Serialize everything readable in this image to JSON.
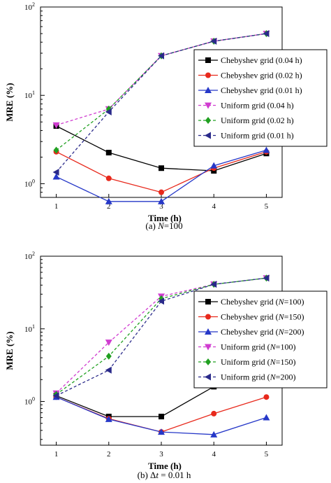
{
  "chart_data": [
    {
      "type": "line",
      "caption": "(a) N=100",
      "xlabel": "Time (h)",
      "ylabel": "MRE (%)",
      "yscale": "log",
      "x": [
        1,
        2,
        3,
        4,
        5
      ],
      "xlim": [
        0.7,
        5.3
      ],
      "ylim": [
        0.7,
        100
      ],
      "x_ticks": [
        "1",
        "2",
        "3",
        "4",
        "5"
      ],
      "y_ticks": [
        {
          "base": "10",
          "exp": "0",
          "value": 1
        },
        {
          "base": "10",
          "exp": "1",
          "value": 10
        },
        {
          "base": "10",
          "exp": "2",
          "value": 100
        }
      ],
      "legend": "right",
      "series": [
        {
          "name": "Chebyshev grid (0.04 h)",
          "values": [
            4.5,
            2.25,
            1.5,
            1.4,
            2.2
          ],
          "color": "#000000",
          "dash": false,
          "marker": "square"
        },
        {
          "name": "Chebyshev grid (0.02 h)",
          "values": [
            2.3,
            1.15,
            0.8,
            1.5,
            2.3
          ],
          "color": "#e8291c",
          "dash": false,
          "marker": "circle"
        },
        {
          "name": "Chebyshev  grid (0.01 h)",
          "values": [
            1.2,
            0.63,
            0.63,
            1.6,
            2.4
          ],
          "color": "#2638c8",
          "dash": false,
          "marker": "triangle-up"
        },
        {
          "name": "Uniform grid (0.04 h)",
          "values": [
            4.6,
            7.0,
            28,
            41,
            50
          ],
          "color": "#d03cd0",
          "dash": true,
          "marker": "triangle-down"
        },
        {
          "name": "Uniform grid (0.02 h)",
          "values": [
            2.4,
            7.0,
            28,
            41,
            50
          ],
          "color": "#20a020",
          "dash": true,
          "marker": "diamond"
        },
        {
          "name": "Uniform grid (0.01 h)",
          "values": [
            1.35,
            6.5,
            28,
            41,
            50
          ],
          "color": "#2a2a8a",
          "dash": true,
          "marker": "triangle-left"
        }
      ]
    },
    {
      "type": "line",
      "caption": "(b) Δt = 0.01 h",
      "xlabel": "Time (h)",
      "ylabel": "MRE (%)",
      "yscale": "log",
      "x": [
        1,
        2,
        3,
        4,
        5
      ],
      "xlim": [
        0.7,
        5.3
      ],
      "ylim": [
        0.25,
        100
      ],
      "x_ticks": [
        "1",
        "2",
        "3",
        "4",
        "5"
      ],
      "y_ticks": [
        {
          "base": "10",
          "exp": "0",
          "value": 1
        },
        {
          "base": "10",
          "exp": "1",
          "value": 10
        },
        {
          "base": "10",
          "exp": "2",
          "value": 100
        }
      ],
      "legend": "right",
      "series": [
        {
          "name": "Chebyshev grid (N=100)",
          "values": [
            1.2,
            0.62,
            0.62,
            1.6,
            2.35
          ],
          "color": "#000000",
          "dash": false,
          "marker": "square"
        },
        {
          "name": "Chebyshev grid (N=150)",
          "values": [
            1.15,
            0.58,
            0.38,
            0.68,
            1.15
          ],
          "color": "#e8291c",
          "dash": false,
          "marker": "circle"
        },
        {
          "name": "Chebyshev grid (N=200)",
          "values": [
            1.15,
            0.57,
            0.38,
            0.35,
            0.6
          ],
          "color": "#2638c8",
          "dash": false,
          "marker": "triangle-up"
        },
        {
          "name": "Uniform grid (N=100)",
          "values": [
            1.3,
            6.5,
            28,
            41,
            50
          ],
          "color": "#d03cd0",
          "dash": true,
          "marker": "triangle-down"
        },
        {
          "name": "Uniform grid (N=150)",
          "values": [
            1.25,
            4.2,
            26,
            41,
            50
          ],
          "color": "#20a020",
          "dash": true,
          "marker": "diamond"
        },
        {
          "name": "Uniform grid (N=200)",
          "values": [
            1.2,
            2.7,
            24,
            41,
            50
          ],
          "color": "#2a2a8a",
          "dash": true,
          "marker": "triangle-left"
        }
      ]
    }
  ]
}
